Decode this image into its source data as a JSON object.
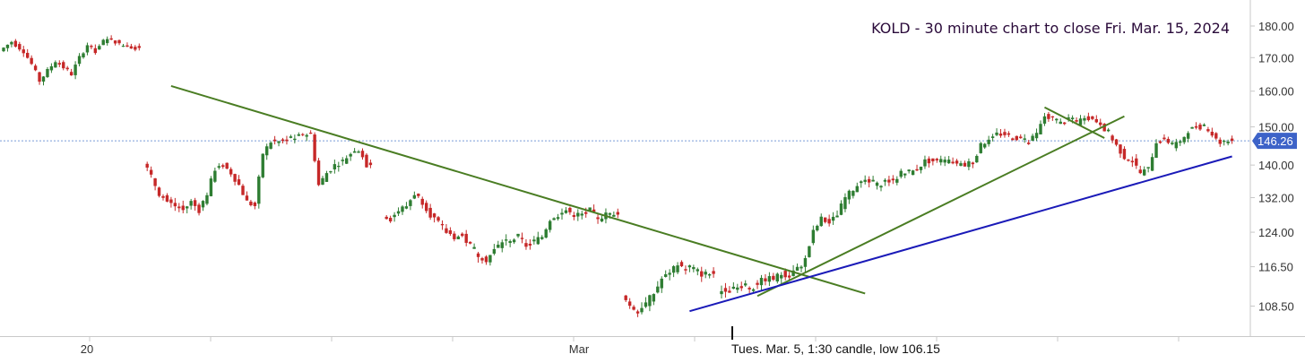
{
  "chart_data": {
    "type": "candlestick",
    "title": "KOLD - 30 minute chart to close Fri. Mar. 15, 2024",
    "annotation": "Tues. Mar. 5, 1:30 candle, low 106.15",
    "price_tag": "146.26",
    "current_price": 146.26,
    "y_axis": {
      "ticks": [
        108.5,
        116.5,
        124.0,
        132.0,
        140.0,
        150.0,
        160.0,
        170.0,
        180.0
      ],
      "tick_labels": [
        "108.50",
        "116.50",
        "124.00",
        "132.00",
        "140.00",
        "150.00",
        "160.00",
        "170.00",
        "180.00"
      ],
      "ylim": [
        103.0,
        184.0
      ],
      "scale": "log"
    },
    "x_axis": {
      "tick_labels": [
        "20",
        "Mar"
      ],
      "bar_range": [
        0,
        308
      ]
    },
    "grid": false,
    "colors": {
      "up": "#2e7d32",
      "down": "#c62828",
      "trendline_green": "#4a7d23",
      "trendline_blue": "#1a1ab8",
      "price_line": "#7a9cd8",
      "price_tag_bg": "#3d63c8",
      "title": "#2a0a3a"
    },
    "trendlines": [
      {
        "name": "down-trendline",
        "color": "green",
        "p1": [
          42,
          161.5
        ],
        "p2": [
          216,
          111.0
        ]
      },
      {
        "name": "support-short",
        "color": "green",
        "p1": [
          189,
          110.5
        ],
        "p2": [
          281,
          152.9
        ]
      },
      {
        "name": "channel-top",
        "color": "green",
        "p1": [
          261,
          155.4
        ],
        "p2": [
          276,
          147.0
        ]
      },
      {
        "name": "support-blue",
        "color": "blue",
        "p1": [
          172,
          107.5
        ],
        "p2": [
          308,
          142.2
        ]
      }
    ],
    "segments": [
      {
        "name": "feb-16",
        "start": 0,
        "anchors": [
          [
            0,
            172
          ],
          [
            3,
            175
          ],
          [
            6,
            172
          ],
          [
            8,
            168
          ],
          [
            10,
            163
          ],
          [
            12,
            166
          ],
          [
            14,
            169
          ],
          [
            16,
            167
          ],
          [
            18,
            165
          ],
          [
            20,
            170
          ],
          [
            22,
            174
          ],
          [
            24,
            172
          ],
          [
            26,
            175
          ],
          [
            28,
            176
          ],
          [
            30,
            174
          ],
          [
            32,
            174
          ],
          [
            34,
            173
          ]
        ]
      },
      {
        "name": "feb-20",
        "start": 36,
        "anchors": [
          [
            36,
            141
          ],
          [
            38,
            137
          ],
          [
            40,
            133
          ],
          [
            42,
            131
          ],
          [
            44,
            130
          ],
          [
            46,
            129
          ],
          [
            48,
            131
          ],
          [
            50,
            129
          ],
          [
            52,
            133
          ],
          [
            54,
            139
          ],
          [
            56,
            140
          ],
          [
            58,
            138
          ],
          [
            60,
            135
          ],
          [
            62,
            131
          ],
          [
            64,
            130
          ],
          [
            66,
            143
          ],
          [
            68,
            146
          ],
          [
            70,
            146
          ],
          [
            72,
            147
          ],
          [
            74,
            147
          ],
          [
            76,
            148
          ],
          [
            78,
            148
          ],
          [
            80,
            135
          ],
          [
            82,
            138
          ],
          [
            84,
            140
          ],
          [
            86,
            141
          ],
          [
            88,
            143
          ],
          [
            90,
            144
          ],
          [
            92,
            140
          ]
        ]
      },
      {
        "name": "feb-26",
        "start": 96,
        "anchors": [
          [
            96,
            128
          ],
          [
            98,
            127
          ],
          [
            100,
            129
          ],
          [
            102,
            130
          ],
          [
            104,
            133
          ],
          [
            106,
            131
          ],
          [
            108,
            128
          ],
          [
            110,
            126
          ],
          [
            112,
            124
          ],
          [
            114,
            123
          ],
          [
            116,
            123
          ],
          [
            118,
            121
          ],
          [
            120,
            119
          ],
          [
            122,
            118
          ],
          [
            124,
            120
          ],
          [
            126,
            122
          ],
          [
            128,
            122
          ],
          [
            130,
            123
          ],
          [
            132,
            121
          ],
          [
            134,
            122
          ],
          [
            136,
            123
          ],
          [
            138,
            127
          ],
          [
            140,
            128
          ],
          [
            142,
            129
          ],
          [
            144,
            128
          ],
          [
            146,
            128
          ],
          [
            148,
            129
          ],
          [
            150,
            127
          ],
          [
            152,
            128
          ],
          [
            154,
            128
          ]
        ]
      },
      {
        "name": "mar-04",
        "start": 156,
        "anchors": [
          [
            156,
            111
          ],
          [
            158,
            108
          ],
          [
            160,
            108
          ],
          [
            162,
            109
          ],
          [
            164,
            111
          ],
          [
            166,
            114
          ],
          [
            168,
            115
          ],
          [
            170,
            117
          ],
          [
            172,
            116
          ],
          [
            174,
            116
          ],
          [
            176,
            115
          ],
          [
            178,
            115
          ]
        ]
      },
      {
        "name": "mar-05",
        "start": 180,
        "anchors": [
          [
            180,
            111
          ],
          [
            182,
            112
          ],
          [
            184,
            112
          ],
          [
            186,
            113
          ],
          [
            188,
            112
          ],
          [
            190,
            113
          ],
          [
            192,
            114
          ],
          [
            194,
            114
          ],
          [
            196,
            115
          ],
          [
            198,
            115
          ],
          [
            200,
            116
          ],
          [
            202,
            118
          ],
          [
            204,
            124
          ],
          [
            206,
            127
          ],
          [
            208,
            126
          ],
          [
            210,
            128
          ],
          [
            212,
            132
          ],
          [
            214,
            134
          ],
          [
            216,
            136
          ],
          [
            218,
            136
          ],
          [
            220,
            135
          ],
          [
            222,
            136
          ],
          [
            224,
            136
          ],
          [
            226,
            138
          ],
          [
            228,
            138
          ],
          [
            230,
            139
          ],
          [
            232,
            141
          ],
          [
            234,
            141
          ],
          [
            236,
            141
          ],
          [
            238,
            141
          ],
          [
            240,
            140
          ],
          [
            242,
            140
          ],
          [
            244,
            141
          ],
          [
            246,
            145
          ],
          [
            248,
            147
          ],
          [
            250,
            148
          ],
          [
            252,
            148
          ],
          [
            254,
            147
          ],
          [
            256,
            147
          ],
          [
            258,
            146
          ],
          [
            260,
            148
          ],
          [
            262,
            153
          ],
          [
            264,
            152
          ],
          [
            266,
            151
          ],
          [
            268,
            152
          ],
          [
            270,
            151
          ],
          [
            272,
            153
          ],
          [
            274,
            152
          ],
          [
            276,
            151
          ],
          [
            278,
            148
          ],
          [
            280,
            145
          ],
          [
            282,
            142
          ],
          [
            284,
            141
          ],
          [
            286,
            138
          ],
          [
            288,
            139
          ],
          [
            290,
            146
          ],
          [
            292,
            147
          ],
          [
            294,
            145
          ],
          [
            296,
            146
          ],
          [
            298,
            149
          ],
          [
            300,
            150
          ],
          [
            302,
            150
          ],
          [
            304,
            148
          ],
          [
            306,
            146
          ],
          [
            308,
            146.26
          ]
        ]
      }
    ]
  }
}
